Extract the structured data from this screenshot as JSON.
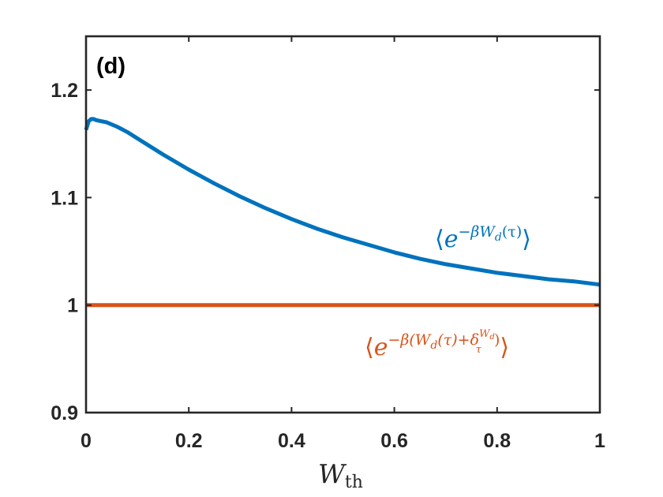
{
  "chart_data": {
    "type": "line",
    "panel_label": "(d)",
    "xlabel": {
      "main": "W",
      "sub": "th"
    },
    "ylabel": "",
    "xlim": [
      0,
      1
    ],
    "ylim": [
      0.9,
      1.25
    ],
    "xticks": [
      0,
      0.2,
      0.4,
      0.6,
      0.8,
      1
    ],
    "xtick_labels": [
      "0",
      "0.2",
      "0.4",
      "0.6",
      "0.8",
      "1"
    ],
    "yticks": [
      0.9,
      1.0,
      1.1,
      1.2
    ],
    "ytick_labels": [
      "0.9",
      "1",
      "1.1",
      "1.2"
    ],
    "grid": false,
    "series": [
      {
        "color": "#0072BD",
        "x": [
          0,
          0.005,
          0.01,
          0.015,
          0.02,
          0.03,
          0.04,
          0.05,
          0.06,
          0.08,
          0.1,
          0.12,
          0.15,
          0.2,
          0.25,
          0.3,
          0.35,
          0.4,
          0.45,
          0.5,
          0.55,
          0.6,
          0.65,
          0.7,
          0.75,
          0.8,
          0.85,
          0.9,
          0.95,
          1.0
        ],
        "y": [
          1.163,
          1.171,
          1.173,
          1.173,
          1.172,
          1.171,
          1.17,
          1.168,
          1.166,
          1.161,
          1.155,
          1.149,
          1.14,
          1.126,
          1.113,
          1.101,
          1.09,
          1.08,
          1.071,
          1.063,
          1.056,
          1.049,
          1.043,
          1.038,
          1.034,
          1.03,
          1.027,
          1.024,
          1.022,
          1.019
        ],
        "annotation": {
          "open": "⟨",
          "base": "e",
          "sup": "−βW",
          "sub": "d",
          "tail": "(τ)",
          "close": "⟩"
        }
      },
      {
        "color": "#D95319",
        "x": [
          0,
          1
        ],
        "y": [
          1.0,
          1.0
        ],
        "annotation": {
          "open": "⟨",
          "base": "e",
          "sup1": "−β(W",
          "sub1": "d",
          "sup2": "(τ)+δ",
          "sub2": "τ",
          "supsup": "W",
          "supsupsub": "d",
          "close2": ")",
          "close": "⟩"
        }
      }
    ]
  }
}
